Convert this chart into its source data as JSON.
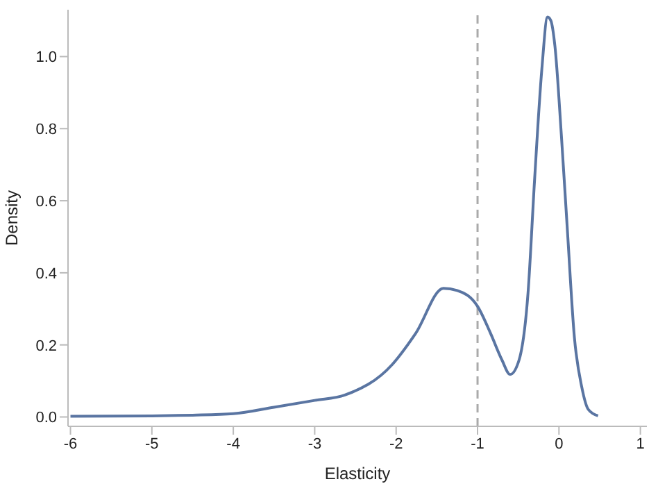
{
  "chart_data": {
    "type": "line",
    "xlabel": "Elasticity",
    "ylabel": "Density",
    "x": [
      -6,
      -5,
      -4.5,
      -4,
      -3.5,
      -3,
      -2.63,
      -2.05,
      -1.76,
      -1.42,
      -1.25,
      -1.0,
      -0.84,
      -0.7,
      -0.6,
      -0.49,
      -0.38,
      -0.3,
      -0.21,
      -0.14,
      -0.1,
      -0.05,
      0.03,
      0.1,
      0.19,
      0.28,
      0.36,
      0.48
    ],
    "series": [
      {
        "color": "#5a75a2",
        "values": [
          0.002,
          0.003,
          0.005,
          0.009,
          0.027,
          0.046,
          0.061,
          0.145,
          0.232,
          0.357,
          0.351,
          0.307,
          0.232,
          0.158,
          0.118,
          0.158,
          0.344,
          0.656,
          0.966,
          1.11,
          1.1,
          1.03,
          0.78,
          0.531,
          0.22,
          0.083,
          0.021,
          0.003
        ]
      }
    ],
    "xlim": [
      -6.03,
      1.08
    ],
    "xticks": [
      -6,
      -5,
      -4,
      -3,
      -2,
      -1,
      0,
      1
    ],
    "ylim": [
      -0.026,
      1.13
    ],
    "yticks": [
      {
        "value": 0,
        "label": "0.0"
      },
      {
        "value": 0.2,
        "label": "0.2"
      },
      {
        "value": 0.4,
        "label": "0.4"
      },
      {
        "value": 0.6,
        "label": "0.6"
      },
      {
        "value": 0.8,
        "label": "0.8"
      },
      {
        "value": 1,
        "label": "1.0"
      }
    ],
    "ref_lines": [
      {
        "axis": "x",
        "value": -1,
        "color": "#aaaaaa",
        "line_style": "dashed"
      }
    ],
    "grid": false,
    "legend": false,
    "marker": "none",
    "line_style": "solid"
  }
}
